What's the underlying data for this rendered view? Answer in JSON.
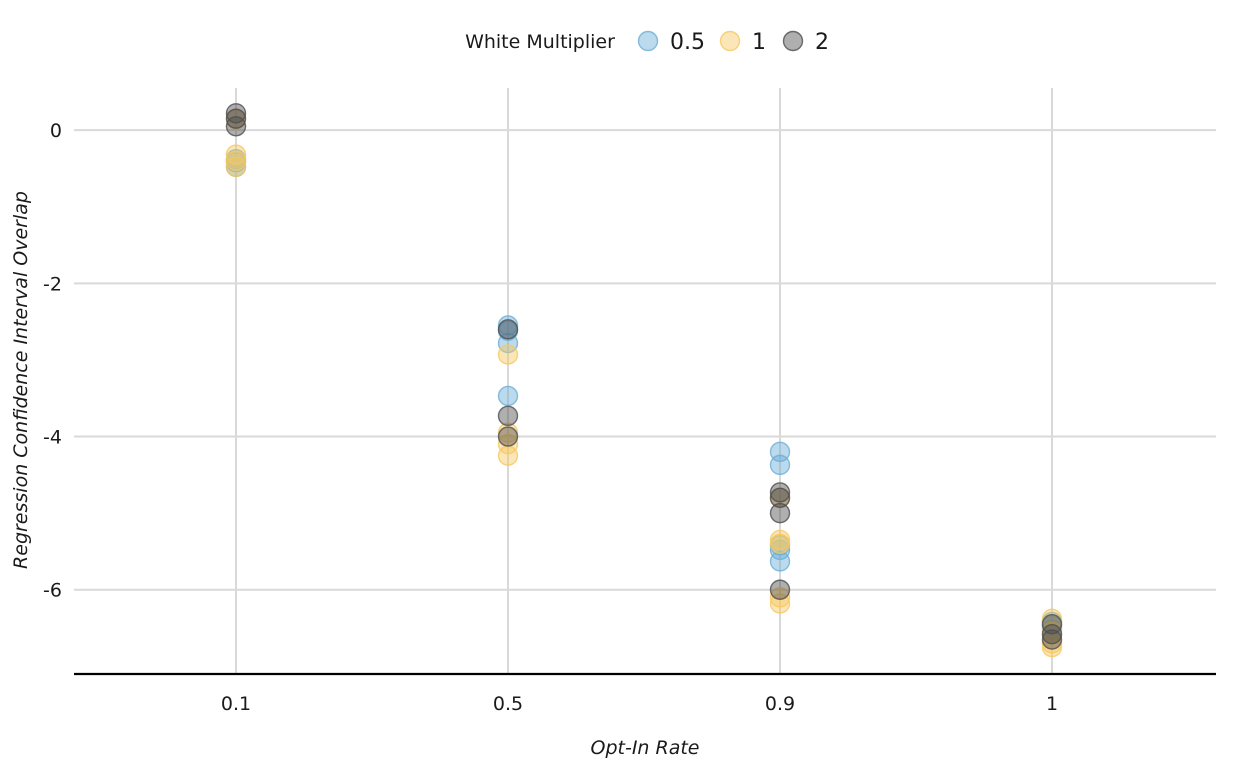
{
  "chart_data": {
    "type": "scatter",
    "title": "",
    "xlabel": "Opt-In Rate",
    "ylabel": "Regression Confidence Interval Overlap",
    "categories": [
      "0.1",
      "0.5",
      "0.9",
      "1"
    ],
    "ylim": [
      -7.1,
      0.55
    ],
    "yticks": [
      0,
      -2,
      -4,
      -6
    ],
    "yticklabels": [
      "0",
      "-2",
      "-4",
      "-6"
    ],
    "grid": true,
    "legend": {
      "title": "White Multiplier",
      "position": "top",
      "entries": [
        "0.5",
        "1",
        "2"
      ]
    },
    "series": [
      {
        "name": "0.5",
        "color": "#6baed6",
        "points": [
          [
            "0.1",
            -0.42
          ],
          [
            "0.1",
            -0.48
          ],
          [
            "0.1",
            -0.38
          ],
          [
            "0.5",
            -2.55
          ],
          [
            "0.5",
            -2.62
          ],
          [
            "0.5",
            -2.78
          ],
          [
            "0.5",
            -3.47
          ],
          [
            "0.9",
            -4.2
          ],
          [
            "0.9",
            -4.37
          ],
          [
            "0.9",
            -5.42
          ],
          [
            "0.9",
            -5.48
          ],
          [
            "0.9",
            -5.63
          ],
          [
            "1",
            -6.42
          ],
          [
            "1",
            -6.47
          ],
          [
            "1",
            -6.52
          ]
        ]
      },
      {
        "name": "1",
        "color": "#f6c85f",
        "points": [
          [
            "0.1",
            -0.32
          ],
          [
            "0.1",
            -0.4
          ],
          [
            "0.1",
            -0.48
          ],
          [
            "0.1",
            0.14
          ],
          [
            "0.5",
            -2.93
          ],
          [
            "0.5",
            -3.95
          ],
          [
            "0.5",
            -4.1
          ],
          [
            "0.5",
            -4.25
          ],
          [
            "0.9",
            -4.8
          ],
          [
            "0.9",
            -5.35
          ],
          [
            "0.9",
            -5.4
          ],
          [
            "0.9",
            -6.1
          ],
          [
            "0.9",
            -6.18
          ],
          [
            "1",
            -6.38
          ],
          [
            "1",
            -6.55
          ],
          [
            "1",
            -6.7
          ],
          [
            "1",
            -6.75
          ]
        ]
      },
      {
        "name": "2",
        "color": "#4d4d4d",
        "points": [
          [
            "0.1",
            0.22
          ],
          [
            "0.1",
            0.15
          ],
          [
            "0.1",
            0.05
          ],
          [
            "0.5",
            -2.6
          ],
          [
            "0.5",
            -3.73
          ],
          [
            "0.5",
            -4.0
          ],
          [
            "0.9",
            -4.73
          ],
          [
            "0.9",
            -4.8
          ],
          [
            "0.9",
            -5.0
          ],
          [
            "0.9",
            -6.0
          ],
          [
            "1",
            -6.45
          ],
          [
            "1",
            -6.58
          ],
          [
            "1",
            -6.65
          ]
        ]
      }
    ]
  }
}
